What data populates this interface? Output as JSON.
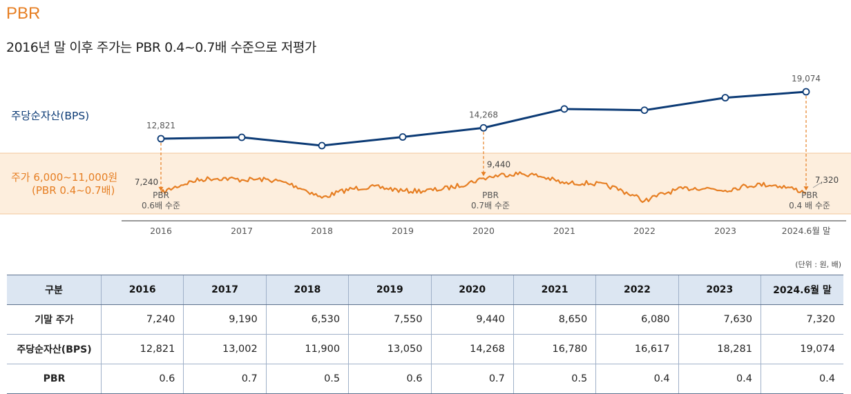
{
  "title": "PBR",
  "subtitle": "2016년 말 이후 주가는 PBR 0.4~0.7배 수준으로 저평가",
  "colors": {
    "accent": "#e67e22",
    "bps_line": "#0b3a75",
    "band": "#fdeedd",
    "header_bg": "#dce6f2"
  },
  "chart_data": {
    "type": "line",
    "categories": [
      "2016",
      "2017",
      "2018",
      "2019",
      "2020",
      "2021",
      "2022",
      "2023",
      "2024.6월 말"
    ],
    "series": [
      {
        "name": "주당순자산(BPS)",
        "label": "주당순자산(BPS)",
        "values": [
          12821,
          13002,
          11900,
          13050,
          14268,
          16780,
          16617,
          18281,
          19074
        ],
        "point_labels": [
          "12,821",
          "",
          "",
          "",
          "14,268",
          "",
          "",
          "",
          "19,074"
        ]
      },
      {
        "name": "주가",
        "label_line1": "주가 6,000~11,000원",
        "label_line2": "(PBR 0.4~0.7배)",
        "values": [
          7240,
          9190,
          6530,
          7550,
          9440,
          8650,
          6080,
          7630,
          7320
        ],
        "point_labels": [
          "7,240",
          "",
          "",
          "",
          "9,440",
          "",
          "",
          "",
          "7,320"
        ],
        "price_range": [
          6000,
          11000
        ]
      }
    ],
    "annotations": [
      {
        "index": 0,
        "line1": "PBR",
        "line2": "0.6배 수준"
      },
      {
        "index": 4,
        "line1": "PBR",
        "line2": "0.7배 수준"
      },
      {
        "index": 8,
        "line1": "PBR",
        "line2": "0.4 배 수준"
      }
    ]
  },
  "table": {
    "unit": "(단위 : 원, 배)",
    "header_label": "구분",
    "columns": [
      "2016",
      "2017",
      "2018",
      "2019",
      "2020",
      "2021",
      "2022",
      "2023",
      "2024.6월 말"
    ],
    "rows": [
      {
        "label": "기말 주가",
        "values": [
          "7,240",
          "9,190",
          "6,530",
          "7,550",
          "9,440",
          "8,650",
          "6,080",
          "7,630",
          "7,320"
        ]
      },
      {
        "label": "주당순자산(BPS)",
        "values": [
          "12,821",
          "13,002",
          "11,900",
          "13,050",
          "14,268",
          "16,780",
          "16,617",
          "18,281",
          "19,074"
        ]
      },
      {
        "label": "PBR",
        "values": [
          "0.6",
          "0.7",
          "0.5",
          "0.6",
          "0.7",
          "0.5",
          "0.4",
          "0.4",
          "0.4"
        ]
      }
    ]
  }
}
